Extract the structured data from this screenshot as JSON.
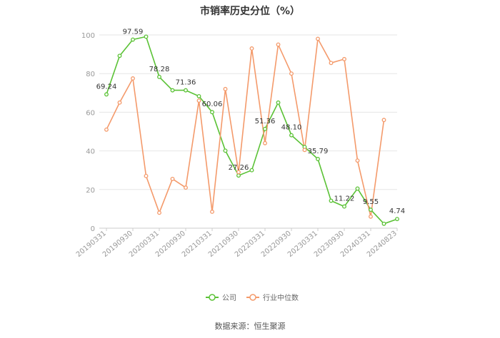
{
  "chart_data": {
    "type": "line",
    "title": "市销率历史分位（%）",
    "source": "数据来源：恒生聚源",
    "ylim": [
      0,
      100
    ],
    "yticks": [
      "0",
      "20",
      "40",
      "60",
      "80",
      "100"
    ],
    "xticks": [
      "20190331",
      "20190930",
      "20200331",
      "20200930",
      "20210331",
      "20210930",
      "20220331",
      "20220930",
      "20230331",
      "20230930",
      "20240331",
      "20240823"
    ],
    "grid": true,
    "legend_position": "bottom",
    "series": [
      {
        "name": "公司",
        "color": "#5bc236",
        "values": [
          69.24,
          89.2,
          97.59,
          99.1,
          78.28,
          71.36,
          71.36,
          68.3,
          60.06,
          40.1,
          27.26,
          30.0,
          51.36,
          65.0,
          48.1,
          42.0,
          35.79,
          14.2,
          11.22,
          20.5,
          9.55,
          2.3,
          4.74
        ],
        "labels": [
          "69.24",
          "",
          "97.59",
          "",
          "78.28",
          "",
          "71.36",
          "",
          "60.06",
          "",
          "27.26",
          "",
          "51.36",
          "",
          "48.10",
          "",
          "35.79",
          "",
          "11.22",
          "",
          "9.55",
          "",
          "4.74"
        ]
      },
      {
        "name": "行业中位数",
        "color": "#f49a6b",
        "values": [
          51.0,
          65.0,
          77.5,
          27.0,
          8.0,
          25.5,
          21.0,
          66.0,
          8.5,
          72.0,
          29.0,
          93.0,
          44.0,
          95.0,
          80.0,
          40.5,
          98.0,
          85.5,
          87.5,
          35.0,
          6.0,
          56.0,
          null
        ],
        "labels": []
      }
    ]
  }
}
